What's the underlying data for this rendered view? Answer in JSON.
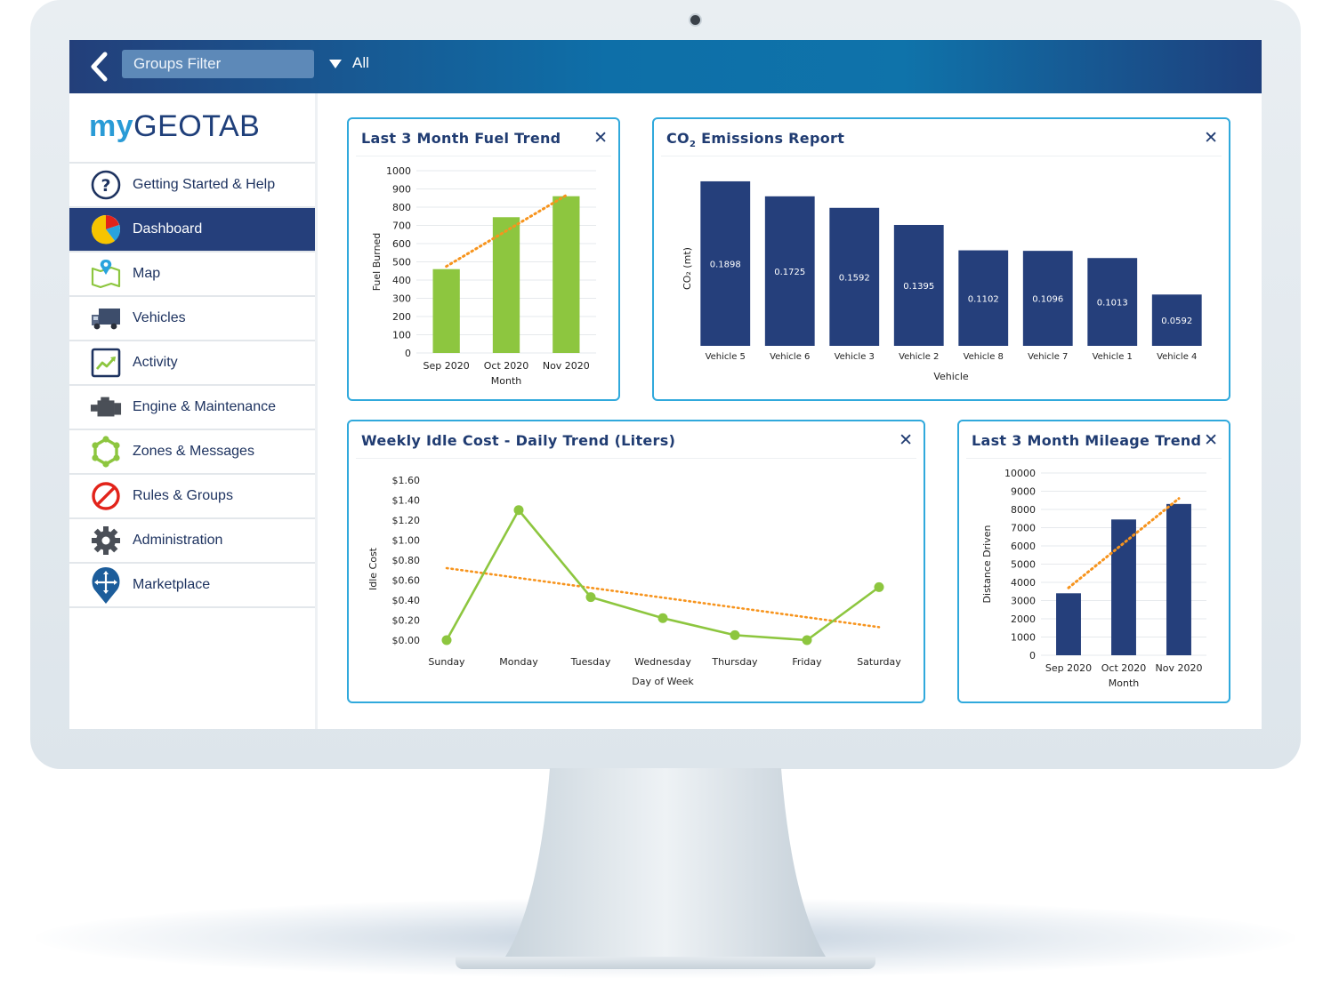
{
  "topbar": {
    "filter_label": "Groups Filter",
    "filter_value": "All"
  },
  "sidebar": {
    "logo_my": "my",
    "logo_geotab": "GEOTAB",
    "items": [
      {
        "label": "Getting Started & Help",
        "icon": "help-icon",
        "active": false
      },
      {
        "label": "Dashboard",
        "icon": "pie-chart-icon",
        "active": true
      },
      {
        "label": "Map",
        "icon": "map-icon",
        "active": false
      },
      {
        "label": "Vehicles",
        "icon": "truck-icon",
        "active": false
      },
      {
        "label": "Activity",
        "icon": "activity-chart-icon",
        "active": false
      },
      {
        "label": "Engine & Maintenance",
        "icon": "engine-icon",
        "active": false
      },
      {
        "label": "Zones & Messages",
        "icon": "zones-icon",
        "active": false
      },
      {
        "label": "Rules & Groups",
        "icon": "no-entry-icon",
        "active": false
      },
      {
        "label": "Administration",
        "icon": "gear-icon",
        "active": false
      },
      {
        "label": "Marketplace",
        "icon": "marketplace-pin-icon",
        "active": false
      }
    ]
  },
  "colors": {
    "accent_blue": "#253f7b",
    "bar_green": "#8dc63f",
    "bar_navy": "#253f7b",
    "trend_orange": "#f7941d",
    "card_border": "#30a9dc"
  },
  "cards": {
    "fuel": {
      "title": "Last 3 Month Fuel Trend",
      "close": "✕"
    },
    "co2": {
      "title_pre": "CO",
      "title_sub": "2",
      "title_post": " Emissions Report",
      "close": "✕"
    },
    "idle": {
      "title": "Weekly Idle Cost - Daily Trend (Liters)",
      "close": "✕"
    },
    "mileage": {
      "title": "Last 3 Month Mileage Trend",
      "close": "✕"
    }
  },
  "chart_data": [
    {
      "id": "fuel",
      "type": "bar",
      "categories": [
        "Sep 2020",
        "Oct 2020",
        "Nov 2020"
      ],
      "values": [
        460,
        745,
        860
      ],
      "trend": [
        475,
        670,
        865
      ],
      "xlabel": "Month",
      "ylabel": "Fuel Burned",
      "ylim": [
        0,
        1000
      ],
      "yticks": [
        "0",
        "100",
        "200",
        "300",
        "400",
        "500",
        "600",
        "700",
        "800",
        "900",
        "1000"
      ],
      "grid": true
    },
    {
      "id": "co2",
      "type": "bar",
      "categories": [
        "Vehicle 5",
        "Vehicle 6",
        "Vehicle 3",
        "Vehicle 2",
        "Vehicle 8",
        "Vehicle 7",
        "Vehicle 1",
        "Vehicle 4"
      ],
      "values": [
        0.1898,
        0.1725,
        0.1592,
        0.1395,
        0.1102,
        0.1096,
        0.1013,
        0.0592
      ],
      "data_labels": [
        "0.1898",
        "0.1725",
        "0.1592",
        "0.1395",
        "0.1102",
        "0.1096",
        "0.1013",
        "0.0592"
      ],
      "xlabel": "Vehicle",
      "ylabel": "CO₂ (mt)",
      "ylim": [
        0,
        0.2
      ],
      "grid": false
    },
    {
      "id": "idle",
      "type": "line",
      "categories": [
        "Sunday",
        "Monday",
        "Tuesday",
        "Wednesday",
        "Thursday",
        "Friday",
        "Saturday"
      ],
      "values": [
        0.0,
        1.3,
        0.43,
        0.22,
        0.05,
        0.0,
        0.53
      ],
      "trend": [
        0.72,
        0.13
      ],
      "xlabel": "Day of Week",
      "ylabel": "Idle Cost",
      "ylim": [
        0,
        1.6
      ],
      "yticks": [
        "$0.00",
        "$0.20",
        "$0.40",
        "$0.60",
        "$0.80",
        "$1.00",
        "$1.20",
        "$1.40",
        "$1.60"
      ],
      "grid": false
    },
    {
      "id": "mileage",
      "type": "bar",
      "categories": [
        "Sep 2020",
        "Oct 2020",
        "Nov 2020"
      ],
      "values": [
        3400,
        7450,
        8300
      ],
      "trend": [
        3700,
        8600
      ],
      "xlabel": "Month",
      "ylabel": "Distance Driven",
      "ylim": [
        0,
        10000
      ],
      "yticks": [
        "0",
        "1000",
        "2000",
        "3000",
        "4000",
        "5000",
        "6000",
        "7000",
        "8000",
        "9000",
        "10000"
      ],
      "grid": true
    }
  ]
}
